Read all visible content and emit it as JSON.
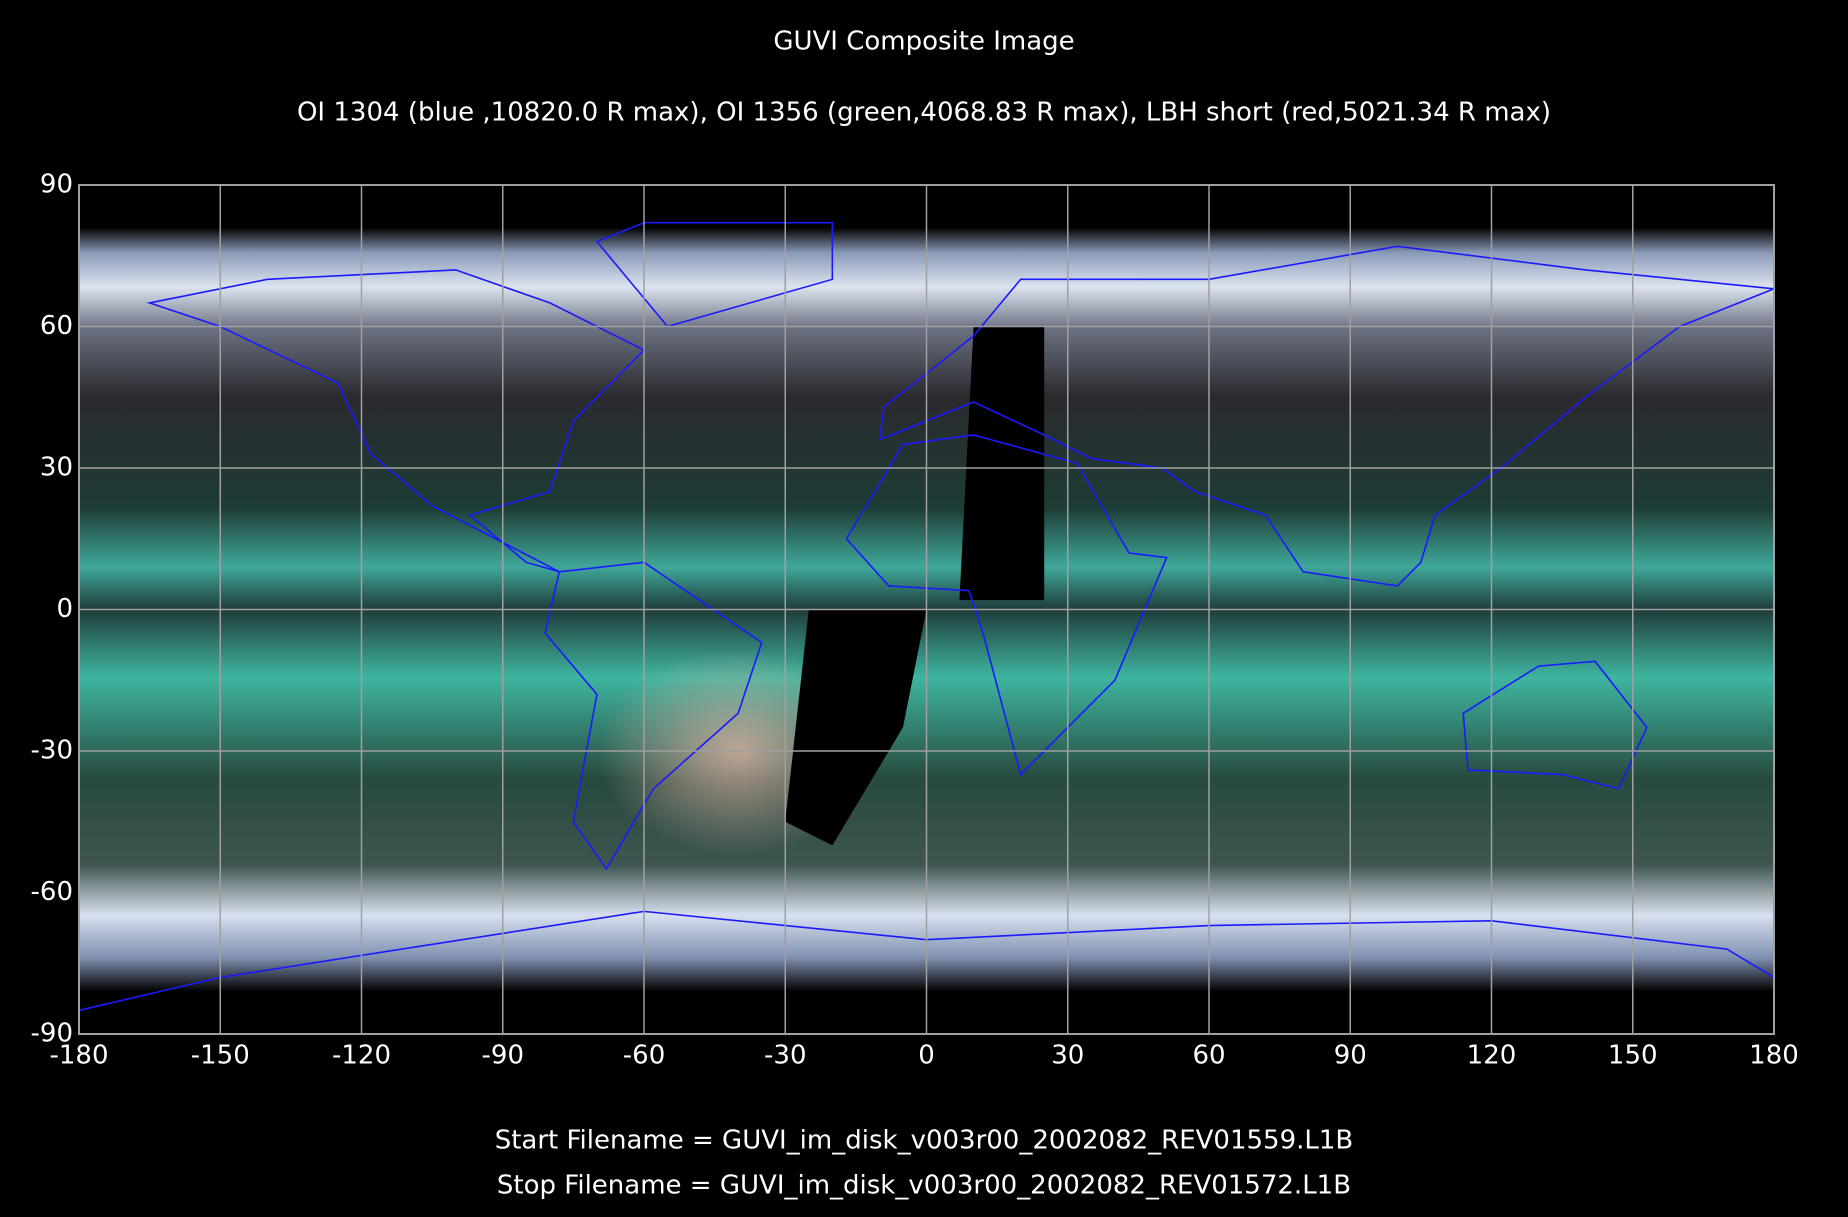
{
  "chart_data": {
    "type": "map",
    "title": "GUVI Composite Image",
    "subtitle": "OI 1304 (blue ,10820.0 R max), OI 1356 (green,4068.83 R max), LBH short (red,5021.34 R max)",
    "xlim": [
      -180,
      180
    ],
    "ylim": [
      -90,
      90
    ],
    "xticks": [
      -180,
      -150,
      -120,
      -90,
      -60,
      -30,
      0,
      30,
      60,
      90,
      120,
      150,
      180
    ],
    "yticks": [
      -90,
      -60,
      -30,
      0,
      30,
      60,
      90
    ],
    "grid": true,
    "footer": [
      "Start Filename = GUVI_im_disk_v003r00_2002082_REV01559.L1B",
      "Stop Filename = GUVI_im_disk_v003r00_2002082_REV01572.L1B"
    ]
  }
}
